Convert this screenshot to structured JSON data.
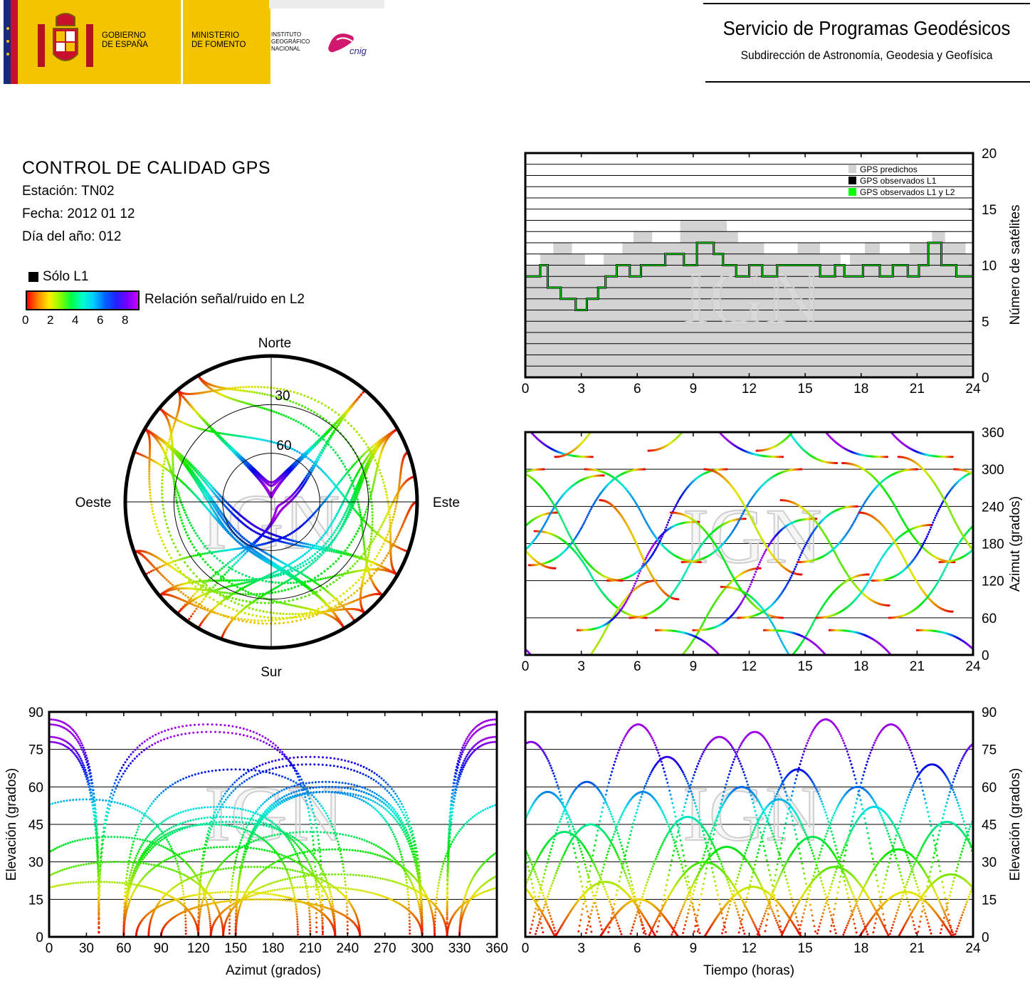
{
  "header": {
    "gov_line1": "GOBIERNO",
    "gov_line2": "DE ESPAÑA",
    "min_line1": "MINISTERIO",
    "min_line2": "DE FOMENTO",
    "ign_line1": "INSTITUTO",
    "ign_line2": "GEOGRÁFICO",
    "ign_line3": "NACIONAL",
    "cnig_logo_text": "cnig",
    "service_title": "Servicio de Programas Geodésicos",
    "service_subtitle": "Subdirección de Astronomía, Geodesia y Geofísica"
  },
  "info": {
    "title": "CONTROL DE CALIDAD GPS",
    "station": "Estación: TN02",
    "date": "Fecha: 2012 01 12",
    "doy": "Día del año: 012"
  },
  "legend": {
    "only_l1": "Sólo L1",
    "snr_label": "Relación señal/ruido en L2",
    "snr_ticks": [
      "0",
      "2",
      "4",
      "6",
      "8"
    ]
  },
  "watermark": "IGN",
  "colors": {
    "predicted": "#d3d3d3",
    "observed_l1": "#000000",
    "observed_l1_l2": "#00ff00",
    "header_yellow": "#f5c400"
  },
  "chart_data": [
    {
      "type": "step-area",
      "id": "satellite-count",
      "xlim": [
        0,
        24
      ],
      "x_ticks": [
        "0",
        "3",
        "6",
        "9",
        "12",
        "15",
        "18",
        "21",
        "24"
      ],
      "ylim": [
        0,
        20
      ],
      "y_ticks": [
        "0",
        "5",
        "10",
        "15",
        "20"
      ],
      "ylabel": "Número de satélites",
      "legend": [
        "GPS predichos",
        "GPS observados L1",
        "GPS observados L1 y L2"
      ],
      "series": [
        {
          "name": "GPS predichos",
          "x": [
            0,
            0.8,
            1.5,
            2.5,
            3.2,
            4.2,
            5.2,
            5.8,
            6.8,
            8.3,
            10.8,
            11.4,
            12.8,
            14.0,
            14.6,
            15.8,
            16.9,
            17.4,
            18.2,
            19.0,
            20.6,
            21.8,
            22.5,
            23.6,
            24
          ],
          "values": [
            10,
            11,
            12,
            11,
            10,
            11,
            12,
            13,
            12,
            14,
            13,
            12,
            11,
            11,
            12,
            11,
            10,
            11,
            12,
            11,
            12,
            13,
            12,
            11,
            11
          ]
        },
        {
          "name": "GPS observados L1 y L2",
          "x": [
            0,
            0.8,
            1.2,
            1.9,
            2.7,
            3.3,
            3.9,
            4.3,
            4.9,
            5.6,
            6.2,
            7.5,
            8.5,
            9.2,
            10.1,
            10.6,
            11.3,
            12.0,
            12.7,
            13.5,
            14.6,
            15.8,
            16.6,
            17.1,
            18.1,
            19.0,
            19.7,
            20.5,
            21.1,
            21.6,
            22.3,
            23.1,
            24
          ],
          "values": [
            9,
            10,
            8,
            7,
            6,
            7,
            8,
            9,
            10,
            9,
            10,
            11,
            10,
            12,
            11,
            10,
            9,
            10,
            9,
            10,
            10,
            9,
            10,
            9,
            10,
            9,
            10,
            9,
            10,
            12,
            10,
            9,
            9
          ]
        }
      ]
    },
    {
      "type": "scatter",
      "id": "azimuth-vs-time",
      "xlim": [
        0,
        24
      ],
      "x_ticks": [
        "0",
        "3",
        "6",
        "9",
        "12",
        "15",
        "18",
        "21",
        "24"
      ],
      "ylim": [
        0,
        360
      ],
      "y_ticks": [
        "0",
        "60",
        "120",
        "180",
        "240",
        "300",
        "360"
      ],
      "ylabel": "Azimut (grados)"
    },
    {
      "type": "scatter",
      "id": "elevation-vs-azimuth",
      "xlim": [
        0,
        360
      ],
      "x_ticks": [
        "0",
        "30",
        "60",
        "90",
        "120",
        "150",
        "180",
        "210",
        "240",
        "270",
        "300",
        "330",
        "360"
      ],
      "ylim": [
        0,
        90
      ],
      "y_ticks": [
        "0",
        "15",
        "30",
        "45",
        "60",
        "75",
        "90"
      ],
      "xlabel": "Azimut (grados)",
      "ylabel": "Elevación (grados)"
    },
    {
      "type": "scatter",
      "id": "elevation-vs-time",
      "xlim": [
        0,
        24
      ],
      "x_ticks": [
        "0",
        "3",
        "6",
        "9",
        "12",
        "15",
        "18",
        "21",
        "24"
      ],
      "ylim": [
        0,
        90
      ],
      "y_ticks": [
        "0",
        "15",
        "30",
        "45",
        "60",
        "75",
        "90"
      ],
      "xlabel": "Tiempo (horas)",
      "ylabel": "Elevación (grados)"
    },
    {
      "type": "scatter",
      "id": "skyplot",
      "elevation_rings": [
        "30",
        "60"
      ],
      "cardinals": {
        "north": "Norte",
        "south": "Sur",
        "east": "Este",
        "west": "Oeste"
      }
    }
  ],
  "satellite_tracks": [
    {
      "t0": 21.0,
      "dur": 6.6,
      "az_rise": 40,
      "az_set": 320,
      "max_el": 78
    },
    {
      "t0": 0.2,
      "dur": 6.2,
      "az_rise": 145,
      "az_set": 300,
      "max_el": 62
    },
    {
      "t0": 0.5,
      "dur": 6.0,
      "az_rise": 200,
      "az_set": 60,
      "max_el": 45
    },
    {
      "t0": 1.6,
      "dur": 5.4,
      "az_rise": 320,
      "az_set": 120,
      "max_el": 22
    },
    {
      "t0": 2.8,
      "dur": 6.5,
      "az_rise": 40,
      "az_set": 215,
      "max_el": 85
    },
    {
      "t0": 3.2,
      "dur": 6.2,
      "az_rise": 300,
      "az_set": 150,
      "max_el": 58
    },
    {
      "t0": 4.0,
      "dur": 4.2,
      "az_rise": 250,
      "az_set": 90,
      "max_el": 15
    },
    {
      "t0": 4.4,
      "dur": 6.4,
      "az_rise": 120,
      "az_set": 300,
      "max_el": 72
    },
    {
      "t0": 5.6,
      "dur": 6.2,
      "az_rise": 60,
      "az_set": 220,
      "max_el": 48
    },
    {
      "t0": 6.6,
      "dur": 6.0,
      "az_rise": 330,
      "az_set": 140,
      "max_el": 30
    },
    {
      "t0": 7.0,
      "dur": 6.8,
      "az_rise": 40,
      "az_set": 320,
      "max_el": 80
    },
    {
      "t0": 7.8,
      "dur": 6.0,
      "az_rise": 230,
      "az_set": 60,
      "max_el": 36
    },
    {
      "t0": 8.4,
      "dur": 6.4,
      "az_rise": 150,
      "az_set": 300,
      "max_el": 60
    },
    {
      "t0": 9.0,
      "dur": 6.6,
      "az_rise": 40,
      "az_set": 220,
      "max_el": 82
    },
    {
      "t0": 9.6,
      "dur": 5.2,
      "az_rise": 300,
      "az_set": 130,
      "max_el": 20
    },
    {
      "t0": 10.5,
      "dur": 6.2,
      "az_rise": 110,
      "az_set": 310,
      "max_el": 55
    },
    {
      "t0": 11.4,
      "dur": 6.4,
      "az_rise": 60,
      "az_set": 240,
      "max_el": 67
    },
    {
      "t0": 12.4,
      "dur": 6.0,
      "az_rise": 330,
      "az_set": 130,
      "max_el": 40
    },
    {
      "t0": 12.8,
      "dur": 6.6,
      "az_rise": 40,
      "az_set": 320,
      "max_el": 87
    },
    {
      "t0": 13.7,
      "dur": 5.8,
      "az_rise": 250,
      "az_set": 80,
      "max_el": 28
    },
    {
      "t0": 14.6,
      "dur": 6.4,
      "az_rise": 150,
      "az_set": 300,
      "max_el": 60
    },
    {
      "t0": 15.6,
      "dur": 6.2,
      "az_rise": 60,
      "az_set": 210,
      "max_el": 52
    },
    {
      "t0": 16.3,
      "dur": 6.6,
      "az_rise": 40,
      "az_set": 320,
      "max_el": 85
    },
    {
      "t0": 17.0,
      "dur": 6.0,
      "az_rise": 310,
      "az_set": 150,
      "max_el": 35
    },
    {
      "t0": 17.9,
      "dur": 5.0,
      "az_rise": 230,
      "az_set": 70,
      "max_el": 18
    },
    {
      "t0": 18.6,
      "dur": 6.4,
      "az_rise": 120,
      "az_set": 300,
      "max_el": 69
    },
    {
      "t0": 19.5,
      "dur": 6.2,
      "az_rise": 60,
      "az_set": 230,
      "max_el": 46
    },
    {
      "t0": 20.0,
      "dur": 5.6,
      "az_rise": 320,
      "az_set": 140,
      "max_el": 25
    },
    {
      "t0": 22.2,
      "dur": 6.0,
      "az_rise": 150,
      "az_set": 290,
      "max_el": 58
    },
    {
      "t0": 23.0,
      "dur": 6.2,
      "az_rise": 300,
      "az_set": 120,
      "max_el": 42
    }
  ]
}
